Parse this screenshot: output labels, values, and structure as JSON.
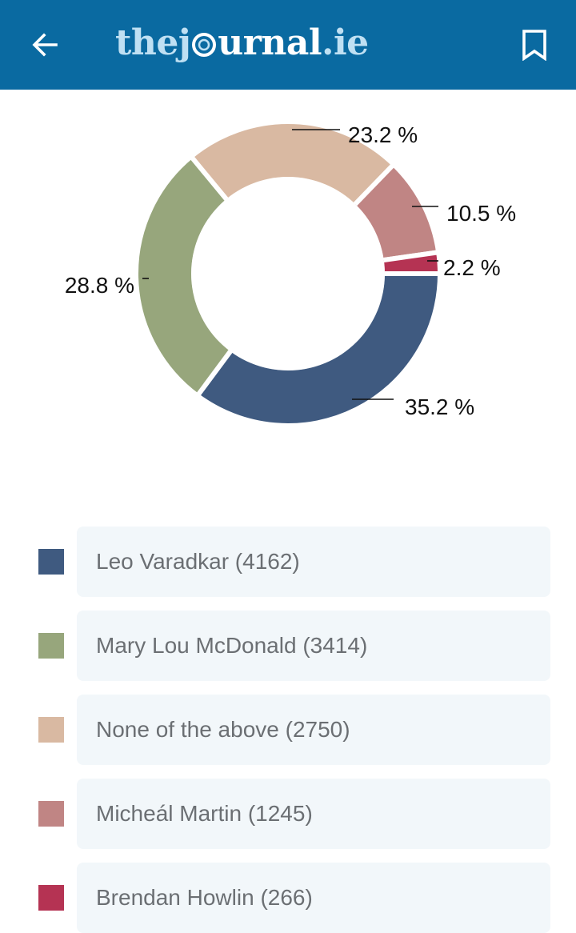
{
  "header": {
    "logo_the": "the",
    "logo_j": "j",
    "logo_rest": "urnal",
    "logo_tld": ".ie",
    "back_icon": "arrow-left-icon",
    "bookmark_icon": "bookmark-icon",
    "background": "#0a6aa1"
  },
  "chart_data": {
    "type": "pie",
    "donut": true,
    "categories": [
      "Leo Varadkar",
      "Mary Lou McDonald",
      "None of the above",
      "Micheál Martin",
      "Brendan Howlin"
    ],
    "values": [
      4162,
      3414,
      2750,
      1245,
      266
    ],
    "percent_labels": [
      "35.2 %",
      "28.8 %",
      "23.2 %",
      "10.5 %",
      "2.2 %"
    ],
    "colors": [
      "#3f5a80",
      "#97a67c",
      "#d9b9a2",
      "#c08584",
      "#b53353"
    ]
  },
  "legend": {
    "items": [
      {
        "label": "Leo Varadkar (4162)",
        "color": "#3f5a80"
      },
      {
        "label": "Mary Lou McDonald (3414)",
        "color": "#97a67c"
      },
      {
        "label": "None of the above (2750)",
        "color": "#d9b9a2"
      },
      {
        "label": "Micheál Martin (1245)",
        "color": "#c08584"
      },
      {
        "label": "Brendan Howlin (266)",
        "color": "#b53353"
      }
    ]
  }
}
